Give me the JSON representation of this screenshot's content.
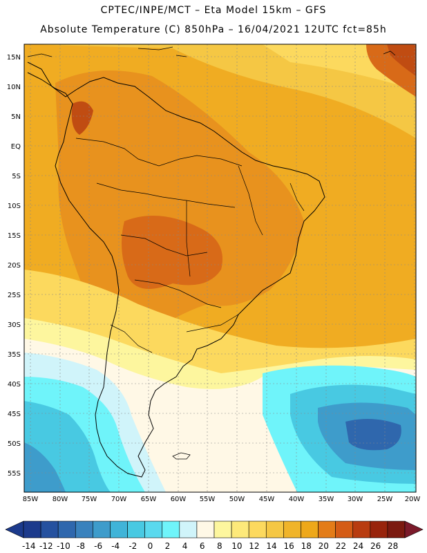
{
  "title_line1": "CPTEC/INPE/MCT –  Eta Model 15km – GFS",
  "title_line2": "Absolute Temperature (C) 850hPa – 16/04/2021 12UTC fct=85h",
  "lat_labels": [
    "15N",
    "10N",
    "5N",
    "EQ",
    "5S",
    "10S",
    "15S",
    "20S",
    "25S",
    "30S",
    "35S",
    "40S",
    "45S",
    "50S",
    "55S"
  ],
  "lon_labels": [
    "85W",
    "80W",
    "75W",
    "70W",
    "65W",
    "60W",
    "55W",
    "50W",
    "45W",
    "40W",
    "35W",
    "30W",
    "25W",
    "20W"
  ],
  "colorbar": {
    "labels": [
      "-14",
      "-12",
      "-10",
      "-8",
      "-6",
      "-4",
      "-2",
      "0",
      "2",
      "4",
      "6",
      "8",
      "10",
      "12",
      "14",
      "16",
      "18",
      "20",
      "22",
      "24",
      "26",
      "28"
    ],
    "colors": [
      "#1c3a8c",
      "#25519f",
      "#2f67ad",
      "#3a82bd",
      "#3e9ccb",
      "#40b4d8",
      "#48c9e2",
      "#5ad9ee",
      "#6ff4fa",
      "#d0f4fa",
      "#fff8e6",
      "#fdf69e",
      "#fde97a",
      "#fcd95e",
      "#f5c744",
      "#f0b42a",
      "#eea81a",
      "#e37c18",
      "#d45c16",
      "#b83c10",
      "#98240c",
      "#7b1a10"
    ]
  },
  "colors": {
    "land_warm": "#e8921e",
    "ocean_warm": "#f0ac22",
    "hot": "#d86a18",
    "very_hot": "#c04c12",
    "coast": "#000000"
  }
}
